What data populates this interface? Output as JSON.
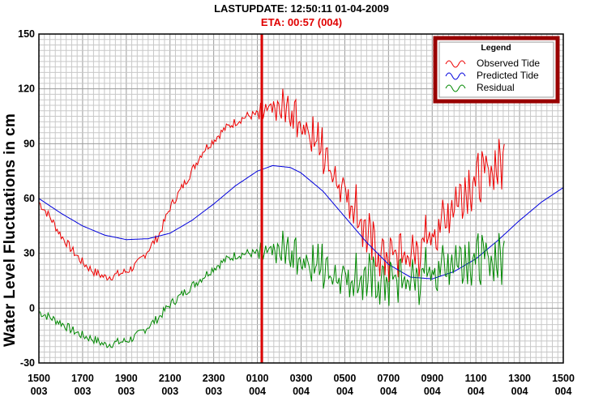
{
  "header": {
    "update_label": "LASTUPDATE: 12:50:11  01-04-2009",
    "eta_label": "ETA: 00:57 (004)"
  },
  "colors": {
    "observed": "#ee0000",
    "predicted": "#0000dd",
    "residual": "#008800",
    "marker": "#dd0000",
    "legend_border": "#990000"
  },
  "chart_data": {
    "type": "line",
    "xlabel": "",
    "ylabel": "Water Level Fluctuations in cm",
    "ylim": [
      -30,
      150
    ],
    "yticks": [
      -30,
      0,
      30,
      60,
      90,
      120,
      150
    ],
    "x_unit": "hours since 1500 day 003",
    "xlim": [
      0,
      24
    ],
    "xticks": [
      {
        "hour": "1500",
        "day": "003"
      },
      {
        "hour": "1700",
        "day": "003"
      },
      {
        "hour": "1900",
        "day": "003"
      },
      {
        "hour": "2100",
        "day": "003"
      },
      {
        "hour": "2300",
        "day": "003"
      },
      {
        "hour": "0100",
        "day": "004"
      },
      {
        "hour": "0300",
        "day": "004"
      },
      {
        "hour": "0500",
        "day": "004"
      },
      {
        "hour": "0700",
        "day": "004"
      },
      {
        "hour": "0900",
        "day": "004"
      },
      {
        "hour": "1100",
        "day": "004"
      },
      {
        "hour": "1300",
        "day": "004"
      },
      {
        "hour": "1500",
        "day": "004"
      }
    ],
    "grid": true,
    "legend": {
      "title": "Legend",
      "placement": "top-right"
    },
    "eta_marker_x": 10.2,
    "series": [
      {
        "name": "Observed Tide",
        "x": [
          0,
          0.5,
          1,
          1.5,
          2,
          2.5,
          3,
          3.5,
          4,
          4.5,
          5,
          5.5,
          6,
          6.5,
          7,
          7.5,
          8,
          8.5,
          9,
          9.5,
          10,
          10.5,
          11,
          11.5,
          12,
          12.5,
          13,
          13.5,
          14,
          14.5,
          15,
          15.5,
          16,
          16.5,
          17,
          17.5,
          18,
          18.5,
          19,
          19.5,
          20,
          20.5,
          21.3
        ],
        "y": [
          58,
          50,
          40,
          32,
          25,
          20,
          17,
          18,
          20,
          24,
          32,
          40,
          55,
          65,
          75,
          86,
          92,
          98,
          102,
          105,
          106,
          108,
          109,
          106,
          102,
          96,
          85,
          75,
          65,
          55,
          40,
          30,
          28,
          30,
          28,
          33,
          40,
          48,
          58,
          65,
          70,
          74,
          80
        ]
      },
      {
        "name": "Predicted Tide",
        "x": [
          0,
          1,
          2,
          3,
          4,
          5,
          6,
          7,
          8,
          9,
          10,
          10.7,
          11.5,
          12,
          13,
          14,
          15,
          16,
          17,
          18,
          19,
          20,
          21,
          22,
          23,
          24
        ],
        "y": [
          60,
          52,
          45,
          40,
          37.5,
          38,
          41,
          48,
          57,
          67,
          75,
          78,
          77,
          74,
          64,
          50,
          36,
          24,
          17,
          16,
          20,
          27,
          37,
          48,
          58,
          66
        ]
      },
      {
        "name": "Residual",
        "x": [
          0,
          0.5,
          1,
          1.5,
          2,
          2.5,
          3,
          3.5,
          4,
          4.5,
          5,
          5.5,
          6,
          6.5,
          7,
          7.5,
          8,
          8.5,
          9,
          9.5,
          10,
          10.5,
          11,
          11.5,
          12,
          12.5,
          13,
          13.5,
          14,
          14.5,
          15,
          15.5,
          16,
          16.5,
          17,
          17.5,
          18,
          18.5,
          19,
          19.5,
          20,
          20.5,
          21.3
        ],
        "y": [
          -2,
          -5,
          -8,
          -12,
          -15,
          -17,
          -20,
          -19,
          -18,
          -15,
          -10,
          -5,
          2,
          7,
          12,
          17,
          22,
          26,
          29,
          30,
          30,
          30,
          31,
          29,
          28,
          25,
          22,
          20,
          18,
          17,
          16,
          14,
          15,
          16,
          15,
          17,
          20,
          23,
          27,
          28,
          27,
          26,
          27
        ]
      }
    ]
  }
}
